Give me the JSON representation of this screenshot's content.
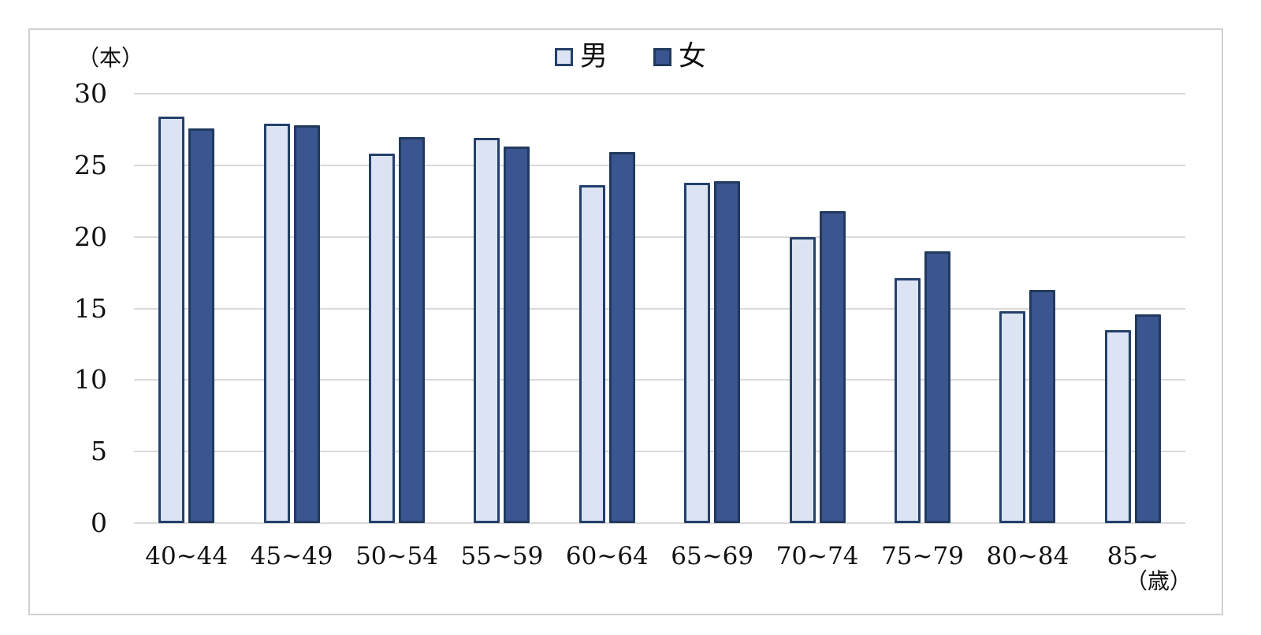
{
  "frame": {
    "background": "#ffffff",
    "border_color": "#d0d0d0"
  },
  "y_axis_unit": "（本）",
  "x_axis_unit": "（歳）",
  "legend": {
    "items": [
      {
        "label": "男",
        "fill": "#dce3f2",
        "border": "#24406b"
      },
      {
        "label": "女",
        "fill": "#3a5590",
        "border": "#223a5e"
      }
    ]
  },
  "chart_data": {
    "type": "bar",
    "title": "",
    "categories": [
      "40~44",
      "45~49",
      "50~54",
      "55~59",
      "60~64",
      "65~69",
      "70~74",
      "75~79",
      "80~84",
      "85~"
    ],
    "series": [
      {
        "name": "男",
        "fill": "#dce3f2",
        "border": "#24406b",
        "values": [
          28.4,
          27.9,
          25.8,
          26.9,
          23.6,
          23.8,
          20.0,
          17.1,
          14.8,
          13.5
        ]
      },
      {
        "name": "女",
        "fill": "#3a5590",
        "border": "#223a5e",
        "values": [
          27.6,
          27.8,
          27.0,
          26.3,
          25.9,
          23.9,
          21.8,
          19.0,
          16.3,
          14.6
        ]
      }
    ],
    "xlabel": "（歳）",
    "ylabel": "（本）",
    "ylim": [
      0,
      30
    ],
    "yticks": [
      0,
      5,
      10,
      15,
      20,
      25,
      30
    ],
    "grid": true,
    "gridline_color": "#d9d9d9",
    "legend_position": "top-center"
  }
}
